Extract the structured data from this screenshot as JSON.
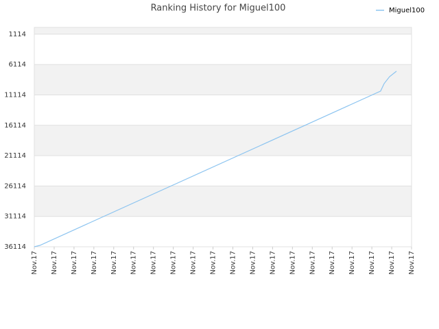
{
  "chart_data": {
    "type": "line",
    "title": "Ranking History for Miguel100",
    "x": [
      0,
      0.28,
      17.44,
      17.62,
      17.89,
      18.24
    ],
    "series": [
      {
        "name": "Miguel100",
        "color": "#8cc4f0",
        "values": [
          36114,
          35888,
          10485,
          9243,
          8114,
          7211
        ]
      }
    ],
    "xlim": [
      0,
      19
    ],
    "xticks": [
      {
        "value": 0,
        "label": "Nov.17"
      },
      {
        "value": 1,
        "label": "Nov.17"
      },
      {
        "value": 2,
        "label": "Nov.17"
      },
      {
        "value": 3,
        "label": "Nov.17"
      },
      {
        "value": 4,
        "label": "Nov.17"
      },
      {
        "value": 5,
        "label": "Nov.17"
      },
      {
        "value": 6,
        "label": "Nov.17"
      },
      {
        "value": 7,
        "label": "Nov.17"
      },
      {
        "value": 8,
        "label": "Nov.17"
      },
      {
        "value": 9,
        "label": "Nov.17"
      },
      {
        "value": 10,
        "label": "Nov.17"
      },
      {
        "value": 11,
        "label": "Nov.17"
      },
      {
        "value": 12,
        "label": "Nov.17"
      },
      {
        "value": 13,
        "label": "Nov.17"
      },
      {
        "value": 14,
        "label": "Nov.17"
      },
      {
        "value": 15,
        "label": "Nov.17"
      },
      {
        "value": 16,
        "label": "Nov.17"
      },
      {
        "value": 17,
        "label": "Nov.17"
      },
      {
        "value": 18,
        "label": "Nov.17"
      },
      {
        "value": 19,
        "label": "Nov.17"
      }
    ],
    "ylim": [
      36114,
      0
    ],
    "yticks": [
      1114,
      6114,
      11114,
      16114,
      21114,
      26114,
      31114,
      36114
    ],
    "grid": true,
    "legend": "top-right"
  }
}
